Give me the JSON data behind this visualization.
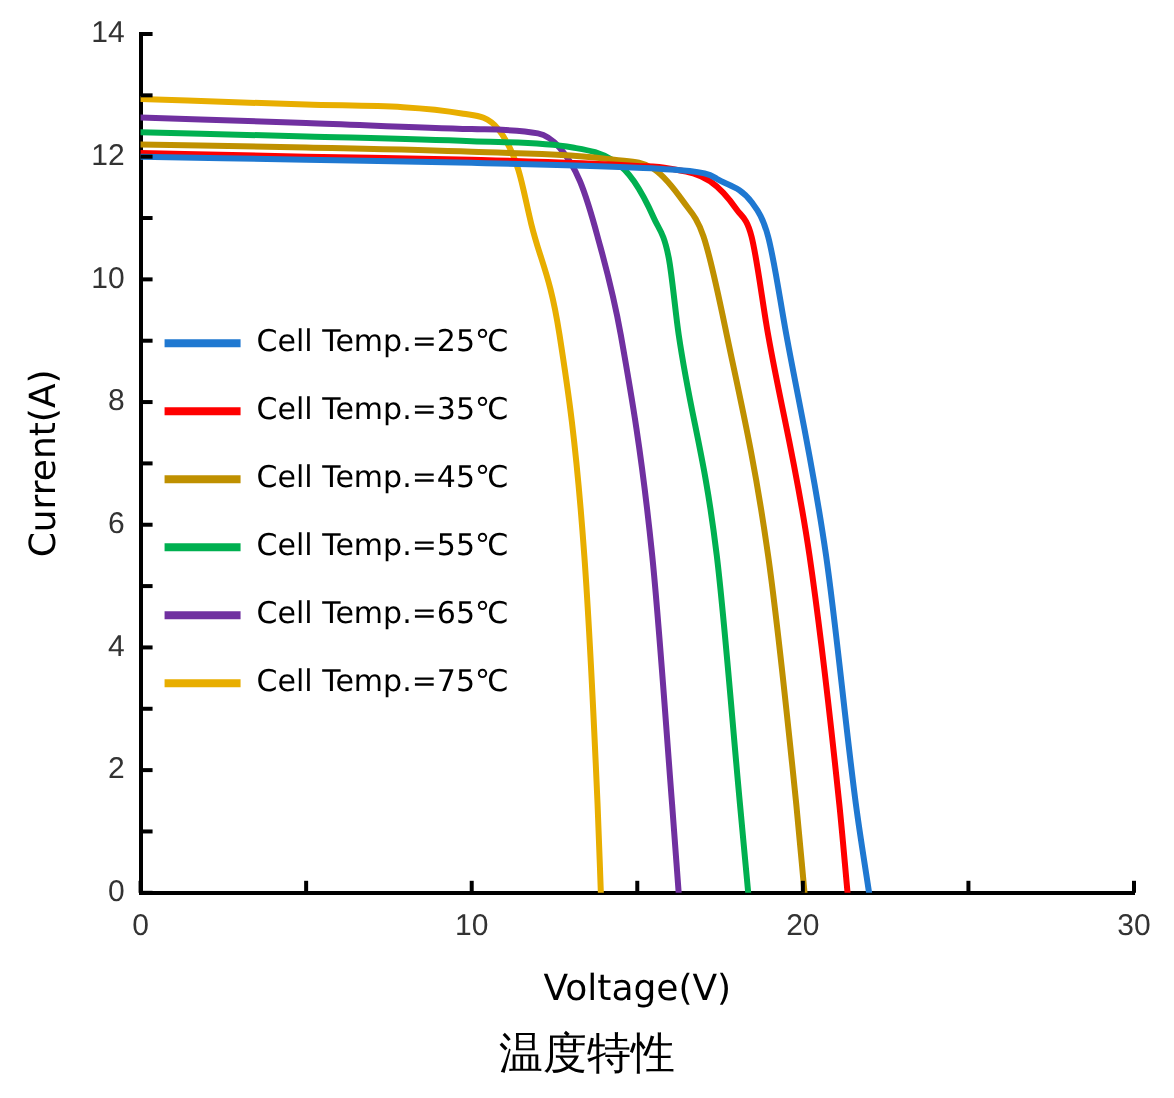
{
  "chart_data": {
    "type": "line",
    "title": "温度特性",
    "xlabel": "Voltage(V)",
    "ylabel": "Current(A)",
    "xlim": [
      0,
      30
    ],
    "xticks": [
      0,
      {
        "value": 5,
        "label": null
      },
      10,
      {
        "value": 15,
        "label": null
      },
      20,
      {
        "value": 25,
        "label": null
      },
      30
    ],
    "ylim": [
      0,
      14
    ],
    "yticks": [
      0,
      {
        "value": 1,
        "label": null
      },
      2,
      {
        "value": 3,
        "label": null
      },
      4,
      {
        "value": 5,
        "label": null
      },
      6,
      {
        "value": 7,
        "label": null
      },
      8,
      {
        "value": 9,
        "label": null
      },
      10,
      {
        "value": 11,
        "label": null
      },
      12,
      {
        "value": 13,
        "label": null
      },
      14
    ],
    "grid": false,
    "legend": "left",
    "marker": "none",
    "line_style": "solid",
    "series": [
      {
        "name": "Cell Temp.=25℃",
        "color": "#1f78d1",
        "x": [
          0,
          5,
          10,
          15,
          16,
          17.2,
          17.4,
          18.45,
          18.95,
          19.5,
          20.7,
          21.6,
          22.0
        ],
        "values": [
          12.0,
          11.95,
          11.9,
          11.82,
          11.79,
          11.7,
          11.64,
          11.26,
          10.7,
          9.1,
          5.5,
          1.45,
          0
        ]
      },
      {
        "name": "Cell Temp.=35℃",
        "color": "#ff0000",
        "x": [
          0,
          5,
          10,
          15,
          15.95,
          17.2,
          18.0,
          18.45,
          18.95,
          20.2,
          21.1,
          21.35
        ],
        "values": [
          12.06,
          12.0,
          11.95,
          11.85,
          11.81,
          11.6,
          11.14,
          10.7,
          9.1,
          5.5,
          1.45,
          0
        ]
      },
      {
        "name": "Cell Temp.=45℃",
        "color": "#bf9000",
        "x": [
          0,
          5,
          10,
          14.3,
          15.5,
          16.4,
          17.0,
          17.7,
          18.95,
          19.8,
          20.05
        ],
        "values": [
          12.2,
          12.15,
          12.08,
          11.95,
          11.8,
          11.26,
          10.7,
          9.1,
          5.5,
          1.45,
          0
        ]
      },
      {
        "name": "Cell Temp.=55℃",
        "color": "#00b050",
        "x": [
          0,
          5,
          10,
          13.05,
          14.3,
          14.9,
          15.5,
          15.95,
          16.25,
          17.4,
          18.1,
          18.35
        ],
        "values": [
          12.4,
          12.33,
          12.25,
          12.15,
          11.93,
          11.6,
          11.0,
          10.35,
          9.1,
          5.5,
          1.45,
          0
        ]
      },
      {
        "name": "Cell Temp.=65℃",
        "color": "#7030a0",
        "x": [
          0,
          5,
          10,
          12.0,
          12.65,
          13.27,
          13.8,
          14.5,
          15.45,
          16.05,
          16.25
        ],
        "values": [
          12.64,
          12.55,
          12.45,
          12.38,
          12.15,
          11.6,
          10.7,
          9.1,
          5.5,
          1.45,
          0
        ]
      },
      {
        "name": "Cell Temp.=75℃",
        "color": "#e8ae00",
        "x": [
          0,
          5,
          9.75,
          10.8,
          11.4,
          11.8,
          12.65,
          13.4,
          13.8,
          13.9
        ],
        "values": [
          12.94,
          12.85,
          12.7,
          12.45,
          11.8,
          10.9,
          9.1,
          5.5,
          1.45,
          0
        ]
      }
    ]
  }
}
